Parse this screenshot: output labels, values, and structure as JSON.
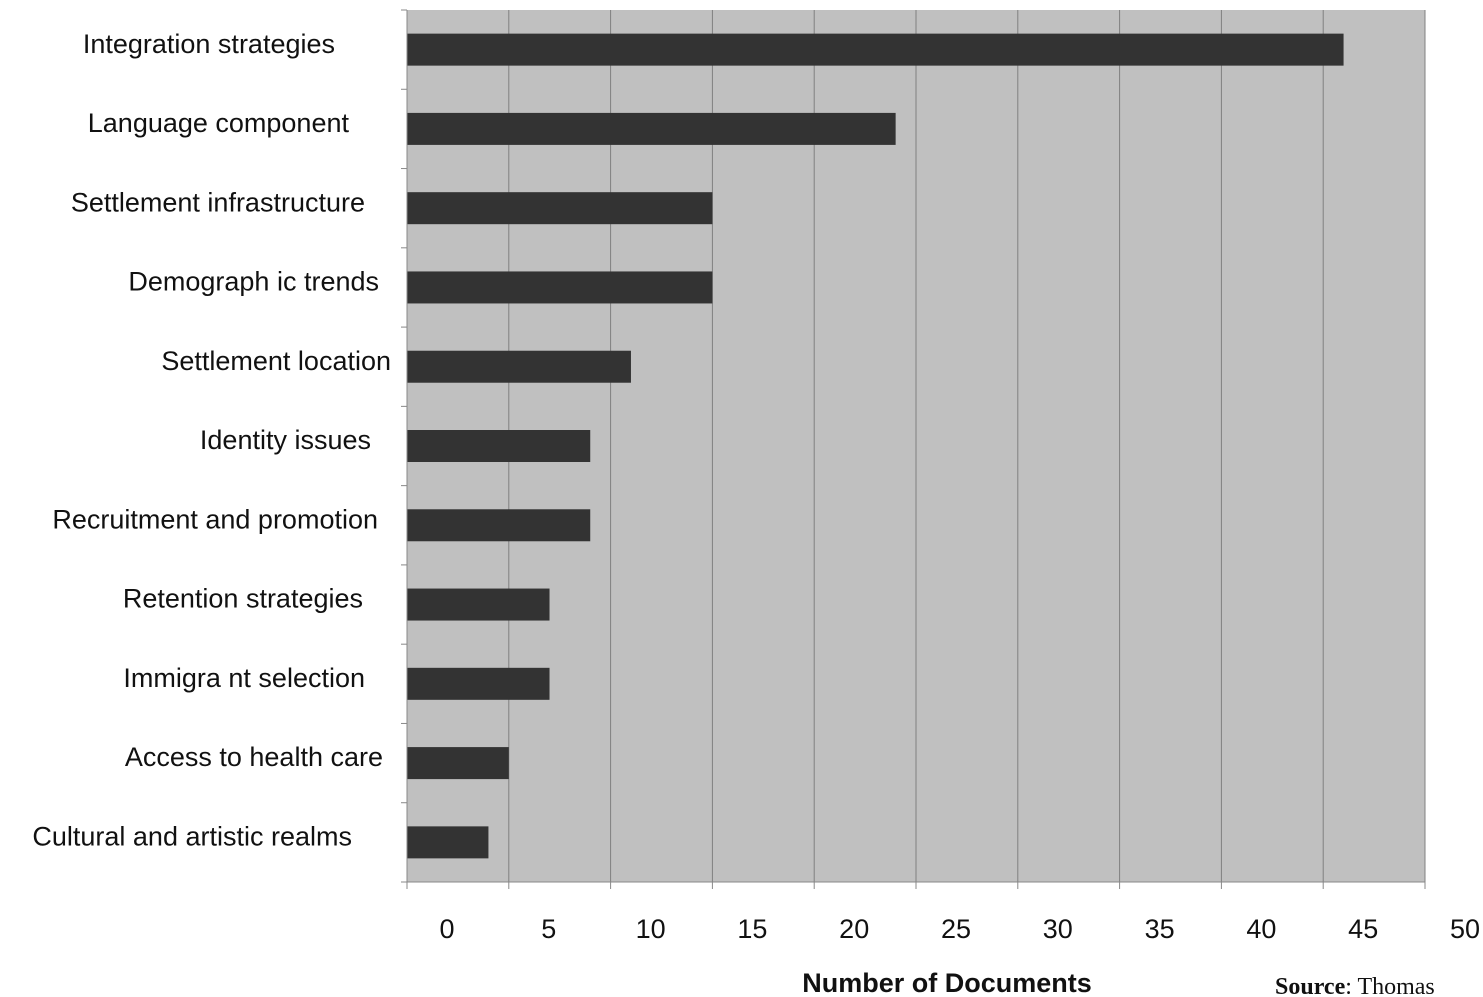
{
  "chart_data": {
    "type": "bar",
    "orientation": "horizontal",
    "categories": [
      "Integration strategies",
      "Language component",
      "Settlement infrastructure",
      "Demograph ic trends",
      "Settlement location",
      "Identity issues",
      "Recruitment and promotion",
      "Retention strategies",
      "Immigra nt selection",
      "Access to health care",
      "Cultural and artistic realms"
    ],
    "values": [
      46,
      24,
      15,
      15,
      11,
      9,
      9,
      7,
      7,
      5,
      4
    ],
    "xlabel": "Number of Documents",
    "ylabel": "",
    "xlim": [
      0,
      50
    ],
    "xticks": [
      "0",
      "5",
      "10",
      "15",
      "20",
      "25",
      "30",
      "35",
      "40",
      "45",
      "50"
    ],
    "grid": "vertical",
    "colors": {
      "plot_background": "#c0c0c0",
      "bar": "#333333",
      "gridline": "#808080",
      "axis": "#888888"
    }
  },
  "source": {
    "label": "Source",
    "text": ": Thomas"
  }
}
